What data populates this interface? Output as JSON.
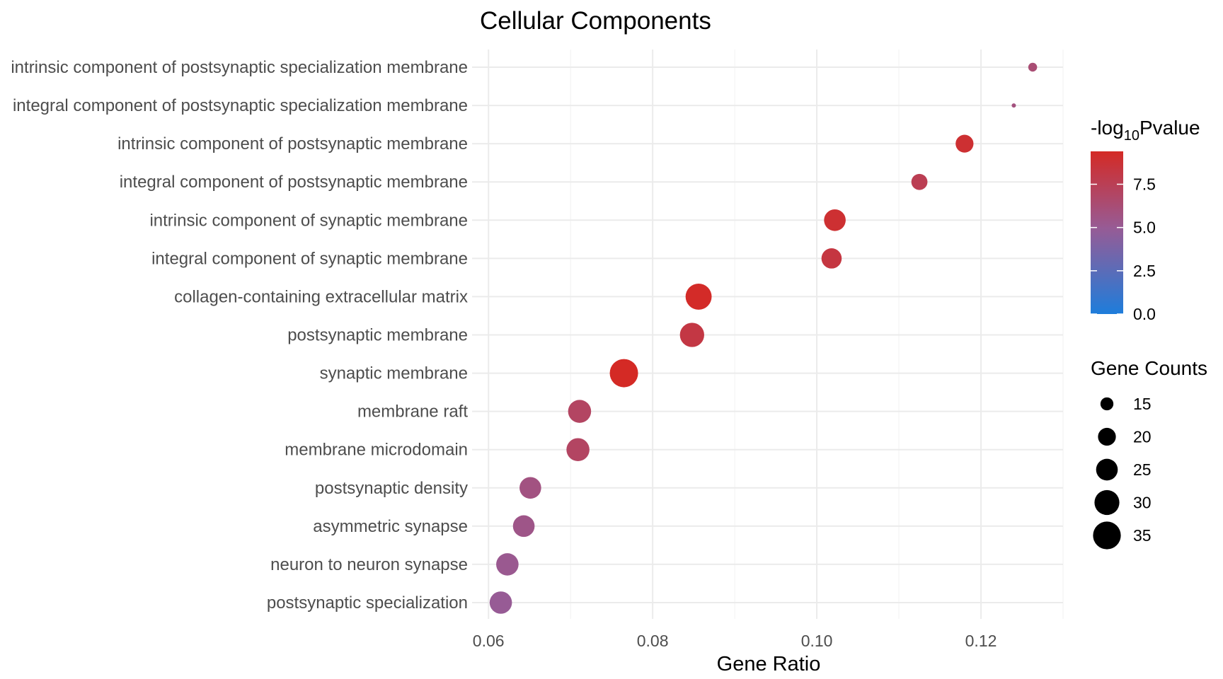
{
  "chart_data": {
    "type": "scatter",
    "title": "Cellular Components",
    "xlabel": "Gene Ratio",
    "ylabel": "",
    "xlim": [
      0.058,
      0.13
    ],
    "x_ticks": [
      0.06,
      0.08,
      0.1,
      0.12
    ],
    "x_tick_labels": [
      "0.06",
      "0.08",
      "0.10",
      "0.12"
    ],
    "grid": true,
    "points": [
      {
        "term": "intrinsic component of postsynaptic specialization membrane",
        "gene_ratio": 0.1263,
        "neg_log10_p": 6.3,
        "count": 12
      },
      {
        "term": "integral component of postsynaptic specialization membrane",
        "gene_ratio": 0.124,
        "neg_log10_p": 5.9,
        "count": 10
      },
      {
        "term": "intrinsic component of postsynaptic membrane",
        "gene_ratio": 0.118,
        "neg_log10_p": 8.9,
        "count": 20
      },
      {
        "term": "integral component of postsynaptic membrane",
        "gene_ratio": 0.1125,
        "neg_log10_p": 7.6,
        "count": 18
      },
      {
        "term": "intrinsic component of synaptic membrane",
        "gene_ratio": 0.1022,
        "neg_log10_p": 8.9,
        "count": 25
      },
      {
        "term": "integral component of synaptic membrane",
        "gene_ratio": 0.1018,
        "neg_log10_p": 8.3,
        "count": 23
      },
      {
        "term": "collagen-containing extracellular matrix",
        "gene_ratio": 0.0856,
        "neg_log10_p": 9.3,
        "count": 32
      },
      {
        "term": "postsynaptic membrane",
        "gene_ratio": 0.0848,
        "neg_log10_p": 8.2,
        "count": 29
      },
      {
        "term": "synaptic membrane",
        "gene_ratio": 0.0765,
        "neg_log10_p": 9.4,
        "count": 36
      },
      {
        "term": "membrane raft",
        "gene_ratio": 0.0711,
        "neg_log10_p": 7.0,
        "count": 27
      },
      {
        "term": "membrane microdomain",
        "gene_ratio": 0.0709,
        "neg_log10_p": 7.0,
        "count": 27
      },
      {
        "term": "postsynaptic density",
        "gene_ratio": 0.0651,
        "neg_log10_p": 5.8,
        "count": 25
      },
      {
        "term": "asymmetric synapse",
        "gene_ratio": 0.0643,
        "neg_log10_p": 5.5,
        "count": 25
      },
      {
        "term": "neuron to neuron synapse",
        "gene_ratio": 0.0623,
        "neg_log10_p": 5.2,
        "count": 26
      },
      {
        "term": "postsynaptic specialization",
        "gene_ratio": 0.0615,
        "neg_log10_p": 5.0,
        "count": 26
      }
    ],
    "color_legend": {
      "title_prefix": "-log",
      "title_subscript": "10",
      "title_suffix": "Pvalue",
      "min": 0.0,
      "max": 9.4,
      "low_color": "#1e7ddb",
      "mid_color": "#975b95",
      "high_color": "#d42a25",
      "ticks": [
        0.0,
        2.5,
        5.0,
        7.5
      ],
      "tick_labels": [
        "0.0",
        "2.5",
        "5.0",
        "7.5"
      ]
    },
    "size_legend": {
      "title": "Gene Counts",
      "values": [
        15,
        20,
        25,
        30,
        35
      ],
      "labels": [
        "15",
        "20",
        "25",
        "30",
        "35"
      ],
      "size_domain": [
        10,
        36
      ]
    },
    "legend_placement": "right"
  }
}
